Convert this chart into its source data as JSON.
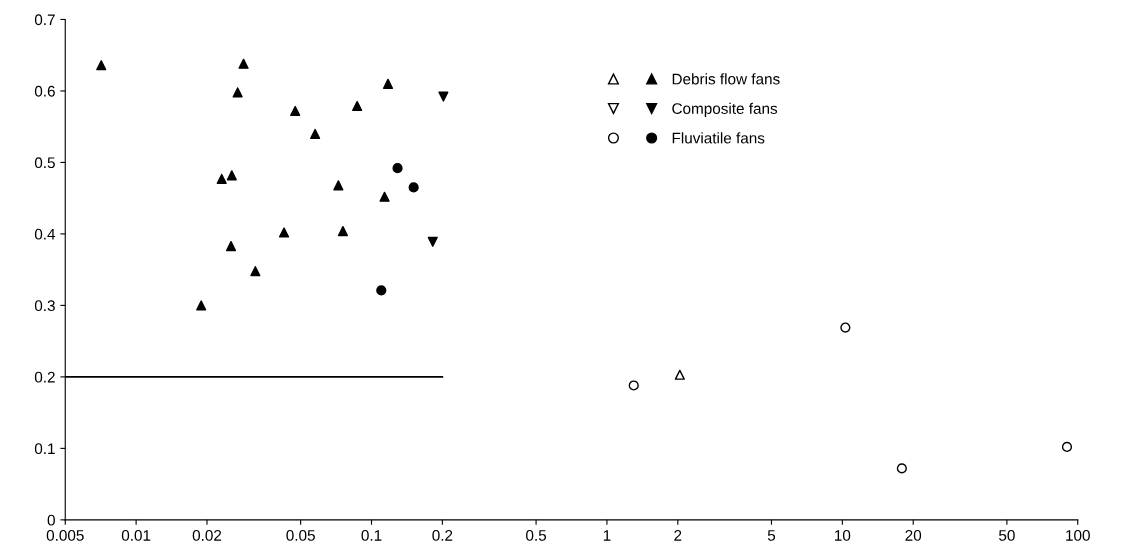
{
  "chart_data": {
    "type": "scatter",
    "log": "x",
    "xlim": [
      0.005,
      100
    ],
    "ylim": [
      0,
      0.7
    ],
    "xticks": [
      0.005,
      0.01,
      0.02,
      0.05,
      0.1,
      0.2,
      0.5,
      1,
      2,
      5,
      10,
      20,
      50,
      100
    ],
    "yticks": [
      0,
      0.1,
      0.2,
      0.3,
      0.4,
      0.5,
      0.6,
      0.7
    ],
    "grid": false,
    "legend": "top",
    "series": [
      {
        "name": "Debris flow fans",
        "color": "#000000",
        "marker": "triangle",
        "x": [
          0.00711,
          0.0286,
          0.027,
          0.1175,
          0.0474,
          0.0869,
          0.0576,
          0.0231,
          0.0255,
          0.0723,
          0.1136,
          0.0425,
          0.0756,
          0.0253,
          0.0321,
          0.0189
        ],
        "values": [
          0.636,
          0.638,
          0.598,
          0.61,
          0.572,
          0.579,
          0.54,
          0.477,
          0.482,
          0.468,
          0.452,
          0.402,
          0.404,
          0.383,
          0.348,
          0.3
        ]
      },
      {
        "name": "Composite fans",
        "color": "#000000",
        "marker": "triangle_down",
        "x": [
          0.202,
          0.182
        ],
        "values": [
          0.592,
          0.389
        ]
      },
      {
        "name": "Fluviatile fans",
        "color": "#000000",
        "marker": "circle",
        "x": [
          0.129,
          0.151,
          0.11
        ],
        "values": [
          0.492,
          0.465,
          0.321
        ]
      },
      {
        "color": "#ffffff",
        "marker": "triangle",
        "x": [
          2.04
        ],
        "values": [
          0.203
        ]
      },
      {
        "color": "#ffffff",
        "marker": "circle",
        "x": [
          10.3,
          1.3,
          17.9,
          90
        ],
        "values": [
          0.269,
          0.188,
          0.072,
          0.102
        ]
      },
      {
        "type": "line",
        "color": "#000000",
        "marker": "none",
        "line_style": "solid",
        "x": [
          0.005,
          0.2
        ],
        "values": [
          0.2,
          0.2
        ]
      }
    ]
  }
}
